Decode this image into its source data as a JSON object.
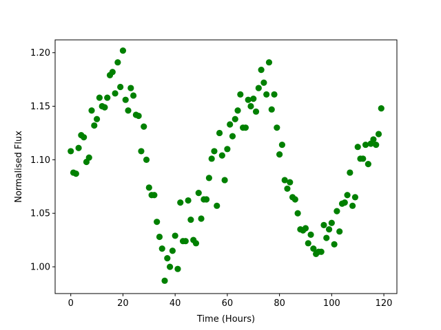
{
  "chart_data": {
    "type": "scatter",
    "title": "",
    "xlabel": "Time (Hours)",
    "ylabel": "Normalised Flux",
    "xlim": [
      -6,
      125
    ],
    "ylim": [
      0.975,
      1.212
    ],
    "xticks": [
      0,
      20,
      40,
      60,
      80,
      100,
      120
    ],
    "xtick_labels": [
      "0",
      "20",
      "40",
      "60",
      "80",
      "100",
      "120"
    ],
    "yticks": [
      1.0,
      1.05,
      1.1,
      1.15,
      1.2
    ],
    "ytick_labels": [
      "1.00",
      "1.05",
      "1.10",
      "1.15",
      "1.20"
    ],
    "grid": false,
    "legend": "none",
    "colors": {
      "marker": "#008000",
      "axes": "#000000",
      "background": "#ffffff"
    },
    "series": [
      {
        "x": [
          0,
          1,
          2,
          3,
          4,
          5,
          6,
          7,
          8,
          9,
          10,
          11,
          12,
          13,
          14,
          15,
          16,
          17,
          18,
          19,
          20,
          21,
          22,
          23,
          24,
          25,
          26,
          27,
          28,
          29,
          30,
          31,
          32,
          33,
          34,
          35,
          36,
          37,
          38,
          39,
          40,
          41,
          42,
          43,
          44,
          45,
          46,
          47,
          48,
          49,
          50,
          51,
          52,
          53,
          54,
          55,
          56,
          57,
          58,
          59,
          60,
          61,
          62,
          63,
          64,
          65,
          66,
          67,
          68,
          69,
          70,
          71,
          72,
          73,
          74,
          75,
          76,
          77,
          78,
          79,
          80,
          81,
          82,
          83,
          84,
          85,
          86,
          87,
          88,
          89,
          90,
          91,
          92,
          93,
          94,
          95,
          96,
          97,
          98,
          99,
          100,
          101,
          102,
          103,
          104,
          105,
          106,
          107,
          108,
          109,
          110,
          111,
          112,
          113,
          114,
          115,
          116,
          117,
          118,
          119
        ],
        "y": [
          1.108,
          1.088,
          1.087,
          1.111,
          1.123,
          1.121,
          1.098,
          1.102,
          1.146,
          1.132,
          1.138,
          1.158,
          1.15,
          1.149,
          1.158,
          1.179,
          1.182,
          1.162,
          1.191,
          1.168,
          1.202,
          1.156,
          1.146,
          1.167,
          1.16,
          1.142,
          1.141,
          1.108,
          1.131,
          1.1,
          1.074,
          1.067,
          1.067,
          1.042,
          1.028,
          1.017,
          0.987,
          1.008,
          1.0,
          1.015,
          1.029,
          0.998,
          1.06,
          1.024,
          1.024,
          1.062,
          1.044,
          1.025,
          1.022,
          1.069,
          1.045,
          1.063,
          1.063,
          1.083,
          1.101,
          1.108,
          1.057,
          1.125,
          1.104,
          1.081,
          1.11,
          1.133,
          1.122,
          1.138,
          1.146,
          1.161,
          1.13,
          1.13,
          1.156,
          1.15,
          1.157,
          1.145,
          1.167,
          1.184,
          1.172,
          1.161,
          1.191,
          1.147,
          1.161,
          1.13,
          1.105,
          1.114,
          1.081,
          1.073,
          1.079,
          1.065,
          1.063,
          1.05,
          1.035,
          1.034,
          1.036,
          1.022,
          1.03,
          1.017,
          1.012,
          1.014,
          1.014,
          1.039,
          1.027,
          1.035,
          1.041,
          1.021,
          1.052,
          1.033,
          1.059,
          1.06,
          1.067,
          1.088,
          1.057,
          1.065,
          1.112,
          1.101,
          1.101,
          1.114,
          1.096,
          1.115,
          1.119,
          1.114,
          1.124,
          1.148
        ]
      }
    ]
  }
}
